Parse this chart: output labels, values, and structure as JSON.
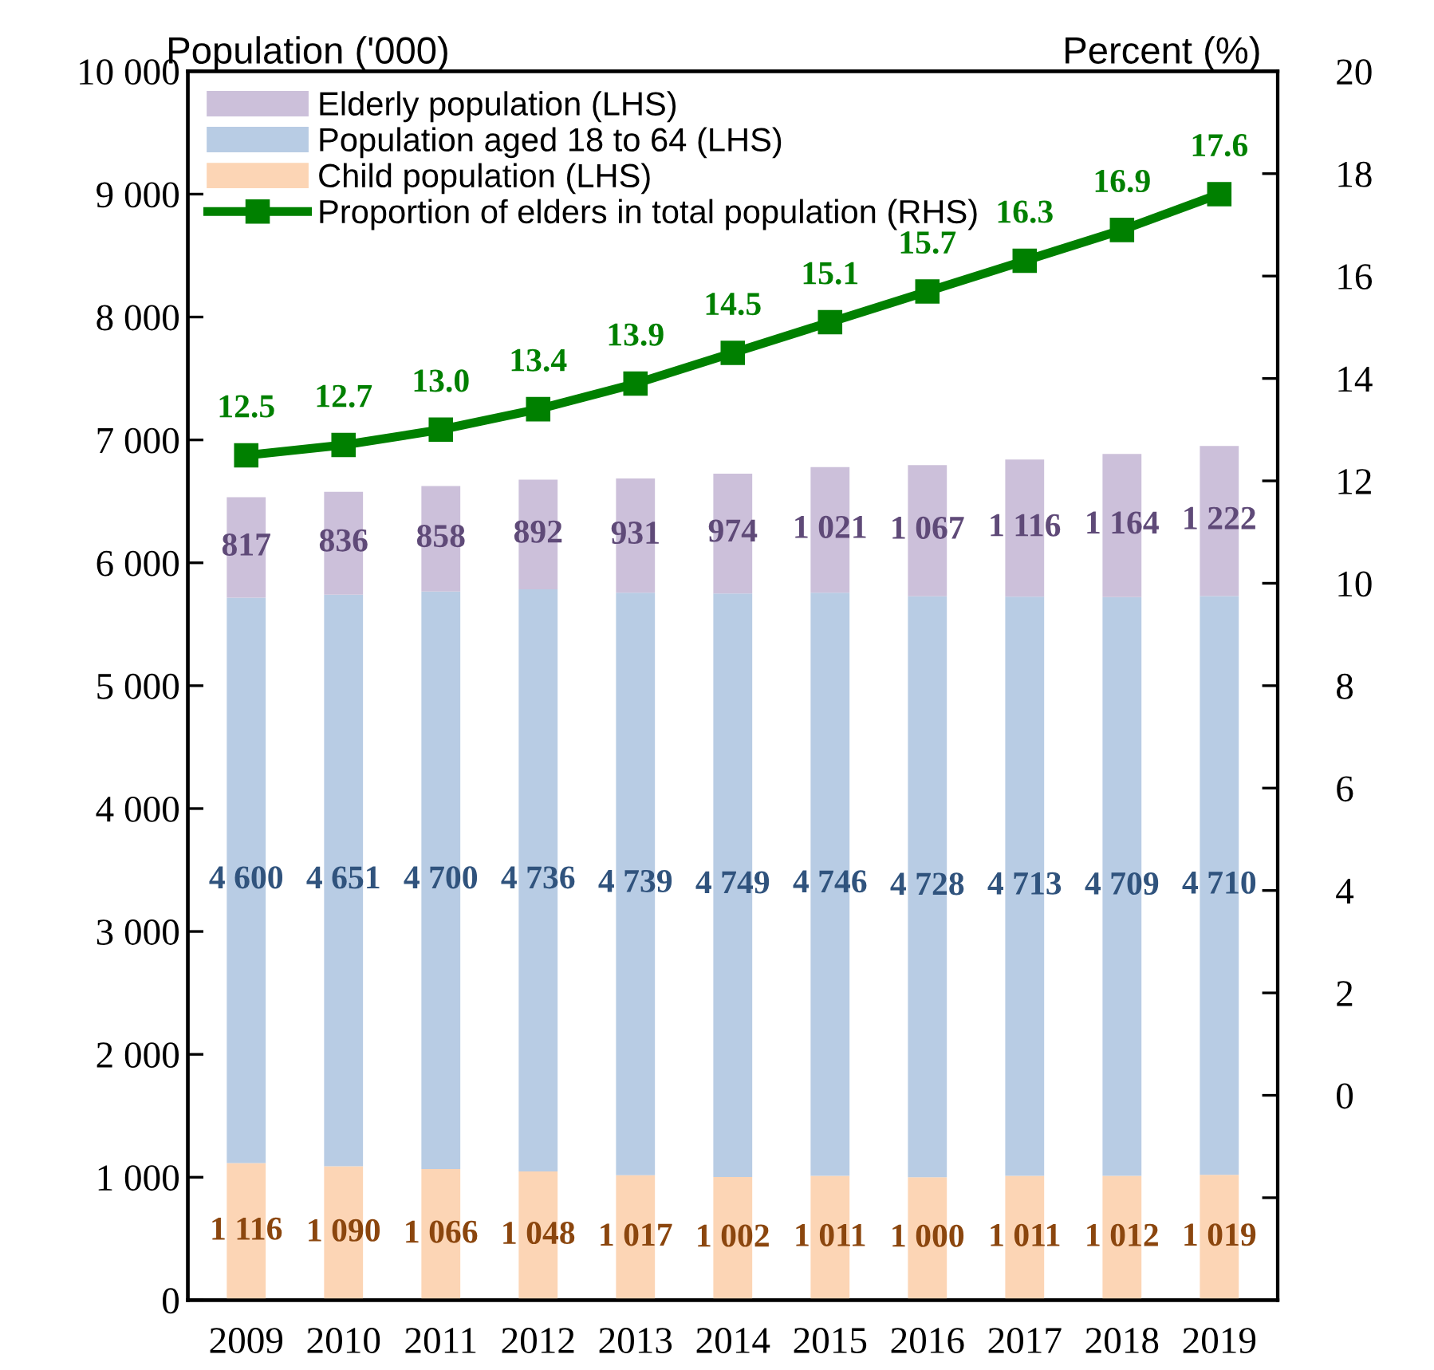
{
  "chart_data": {
    "type": "bar",
    "stacked": true,
    "ylabel": "Population ('000)",
    "y2label": "Percent (%)",
    "categories": [
      "2009",
      "2010",
      "2011",
      "2012",
      "2013",
      "2014",
      "2015",
      "2016",
      "2017",
      "2018",
      "2019"
    ],
    "series": [
      {
        "name": "Child population (LHS)",
        "color": "#fcd5b5",
        "values": [
          1116,
          1090,
          1066,
          1048,
          1017,
          1002,
          1011,
          1000,
          1011,
          1012,
          1019
        ],
        "value_labels": [
          "1 116",
          "1 090",
          "1 066",
          "1 048",
          "1 017",
          "1 002",
          "1 011",
          "1 000",
          "1 011",
          "1 012",
          "1 019"
        ]
      },
      {
        "name": "Population aged 18 to 64 (LHS)",
        "color": "#b8cce4",
        "values": [
          4600,
          4651,
          4700,
          4736,
          4739,
          4749,
          4746,
          4728,
          4713,
          4709,
          4710
        ],
        "value_labels": [
          "4 600",
          "4 651",
          "4 700",
          "4 736",
          "4 739",
          "4 749",
          "4 746",
          "4 728",
          "4 713",
          "4 709",
          "4 710"
        ]
      },
      {
        "name": "Elderly population (LHS)",
        "color": "#ccc0da",
        "values": [
          817,
          836,
          858,
          892,
          931,
          974,
          1021,
          1067,
          1116,
          1164,
          1222
        ],
        "value_labels": [
          "817",
          "836",
          "858",
          "892",
          "931",
          "974",
          "1 021",
          "1 067",
          "1 116",
          "1 164",
          "1 222"
        ]
      },
      {
        "name": "Proportion of elders in total population (RHS)",
        "type": "line",
        "axis": "y2",
        "marker": "square",
        "color": "#008000",
        "values": [
          12.5,
          12.7,
          13.0,
          13.4,
          13.9,
          14.5,
          15.1,
          15.7,
          16.3,
          16.9,
          17.6
        ],
        "value_labels": [
          "12.5",
          "12.7",
          "13.0",
          "13.4",
          "13.9",
          "14.5",
          "15.1",
          "15.7",
          "16.3",
          "16.9",
          "17.6"
        ]
      }
    ],
    "ylim": [
      0,
      10000
    ],
    "yticks": [
      0,
      {
        "value": 1000,
        "label": "1 000"
      },
      {
        "value": 2000,
        "label": "2 000"
      },
      {
        "value": 3000,
        "label": "3 000"
      },
      {
        "value": 4000,
        "label": "4 000"
      },
      {
        "value": 5000,
        "label": "5 000"
      },
      {
        "value": 6000,
        "label": "6 000"
      },
      {
        "value": 7000,
        "label": "7 000"
      },
      {
        "value": 8000,
        "label": "8 000"
      },
      {
        "value": 9000,
        "label": "9 000"
      },
      {
        "value": 10000,
        "label": "10 000"
      }
    ],
    "y2lim": [
      -4,
      20
    ],
    "y2ticks": [
      {
        "value": -2,
        "label": null
      },
      0,
      2,
      4,
      6,
      8,
      10,
      12,
      14,
      16,
      18,
      20
    ],
    "legend": "top left",
    "grid": false
  }
}
